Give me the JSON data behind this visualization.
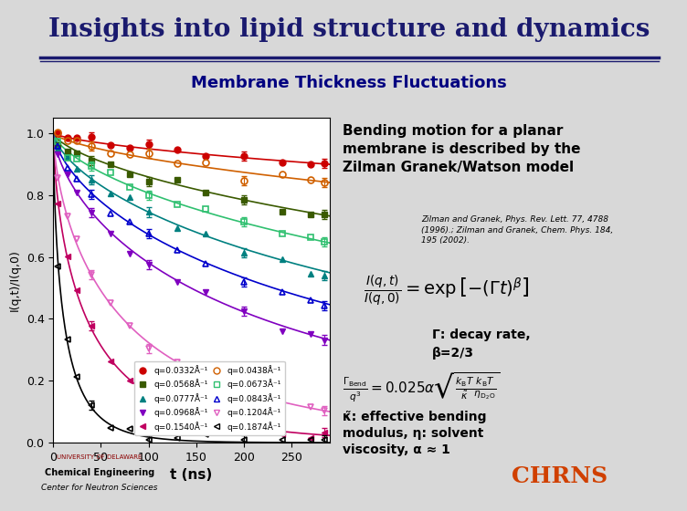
{
  "title": "Insights into lipid structure and dynamics",
  "subtitle": "Membrane Thickness Fluctuations",
  "title_color": "#1a1a6e",
  "subtitle_color": "#000080",
  "bg_color": "#f0f0f0",
  "slide_bg": "#e8e8e8",
  "xlabel": "t (ns)",
  "ylabel": "I(q,t)/I(q,0)",
  "xlim": [
    0,
    290
  ],
  "ylim": [
    0.0,
    1.05
  ],
  "yticks": [
    0.0,
    0.2,
    0.4,
    0.6,
    0.8,
    1.0
  ],
  "xticks": [
    0,
    50,
    100,
    150,
    200,
    250
  ],
  "series": [
    {
      "q": 0.0332,
      "label": "q=0.0332Å⁻¹",
      "color": "#cc0000",
      "gamma": 0.00012,
      "marker": "o",
      "filled": true
    },
    {
      "q": 0.0568,
      "label": "q=0.0568Å⁻¹",
      "color": "#3a5a00",
      "gamma": 0.0006,
      "marker": "s",
      "filled": true
    },
    {
      "q": 0.0777,
      "label": "q=0.0777Å⁻¹",
      "color": "#008080",
      "gamma": 0.0016,
      "marker": "^",
      "filled": true
    },
    {
      "q": 0.0968,
      "label": "q=0.0968Å⁻¹",
      "color": "#8000c0",
      "gamma": 0.004,
      "marker": "v",
      "filled": true
    },
    {
      "q": 0.154,
      "label": "q=0.1540Å⁻¹",
      "color": "#c00060",
      "gamma": 0.025,
      "marker": "<",
      "filled": true
    },
    {
      "q": 0.0438,
      "label": "q=0.0438Å⁻¹",
      "color": "#d06000",
      "gamma": 0.00025,
      "marker": "o",
      "filled": false
    },
    {
      "q": 0.0673,
      "label": "q=0.0673Å⁻¹",
      "color": "#30c070",
      "gamma": 0.001,
      "marker": "s",
      "filled": false
    },
    {
      "q": 0.0843,
      "label": "q=0.0843Å⁻¹",
      "color": "#0000cc",
      "gamma": 0.0025,
      "marker": "^",
      "filled": false
    },
    {
      "q": 0.1204,
      "label": "q=0.1204Å⁻¹",
      "color": "#e060c0",
      "gamma": 0.012,
      "marker": "v",
      "filled": false
    },
    {
      "q": 0.1874,
      "label": "q=0.1874Å⁻¹",
      "color": "#000000",
      "gamma": 0.08,
      "marker": "<",
      "filled": false
    }
  ],
  "beta": 0.6667,
  "text_bending": "Bending motion for a planar\nmembrane is described by the\nZilman Granek/Watson model",
  "text_ref": "Zilman and Granek, Phys. Rev. Lett. 77, 4788\n(1996).; Zilman and Granek, Chem. Phys. 184,\n195 (2002).",
  "text_gamma": "Γ: decay rate,\nβ=2/3",
  "text_kappa": "κ̃: effective bending\nmodulus, η: solvent\nviscosity, α ≈ 1"
}
